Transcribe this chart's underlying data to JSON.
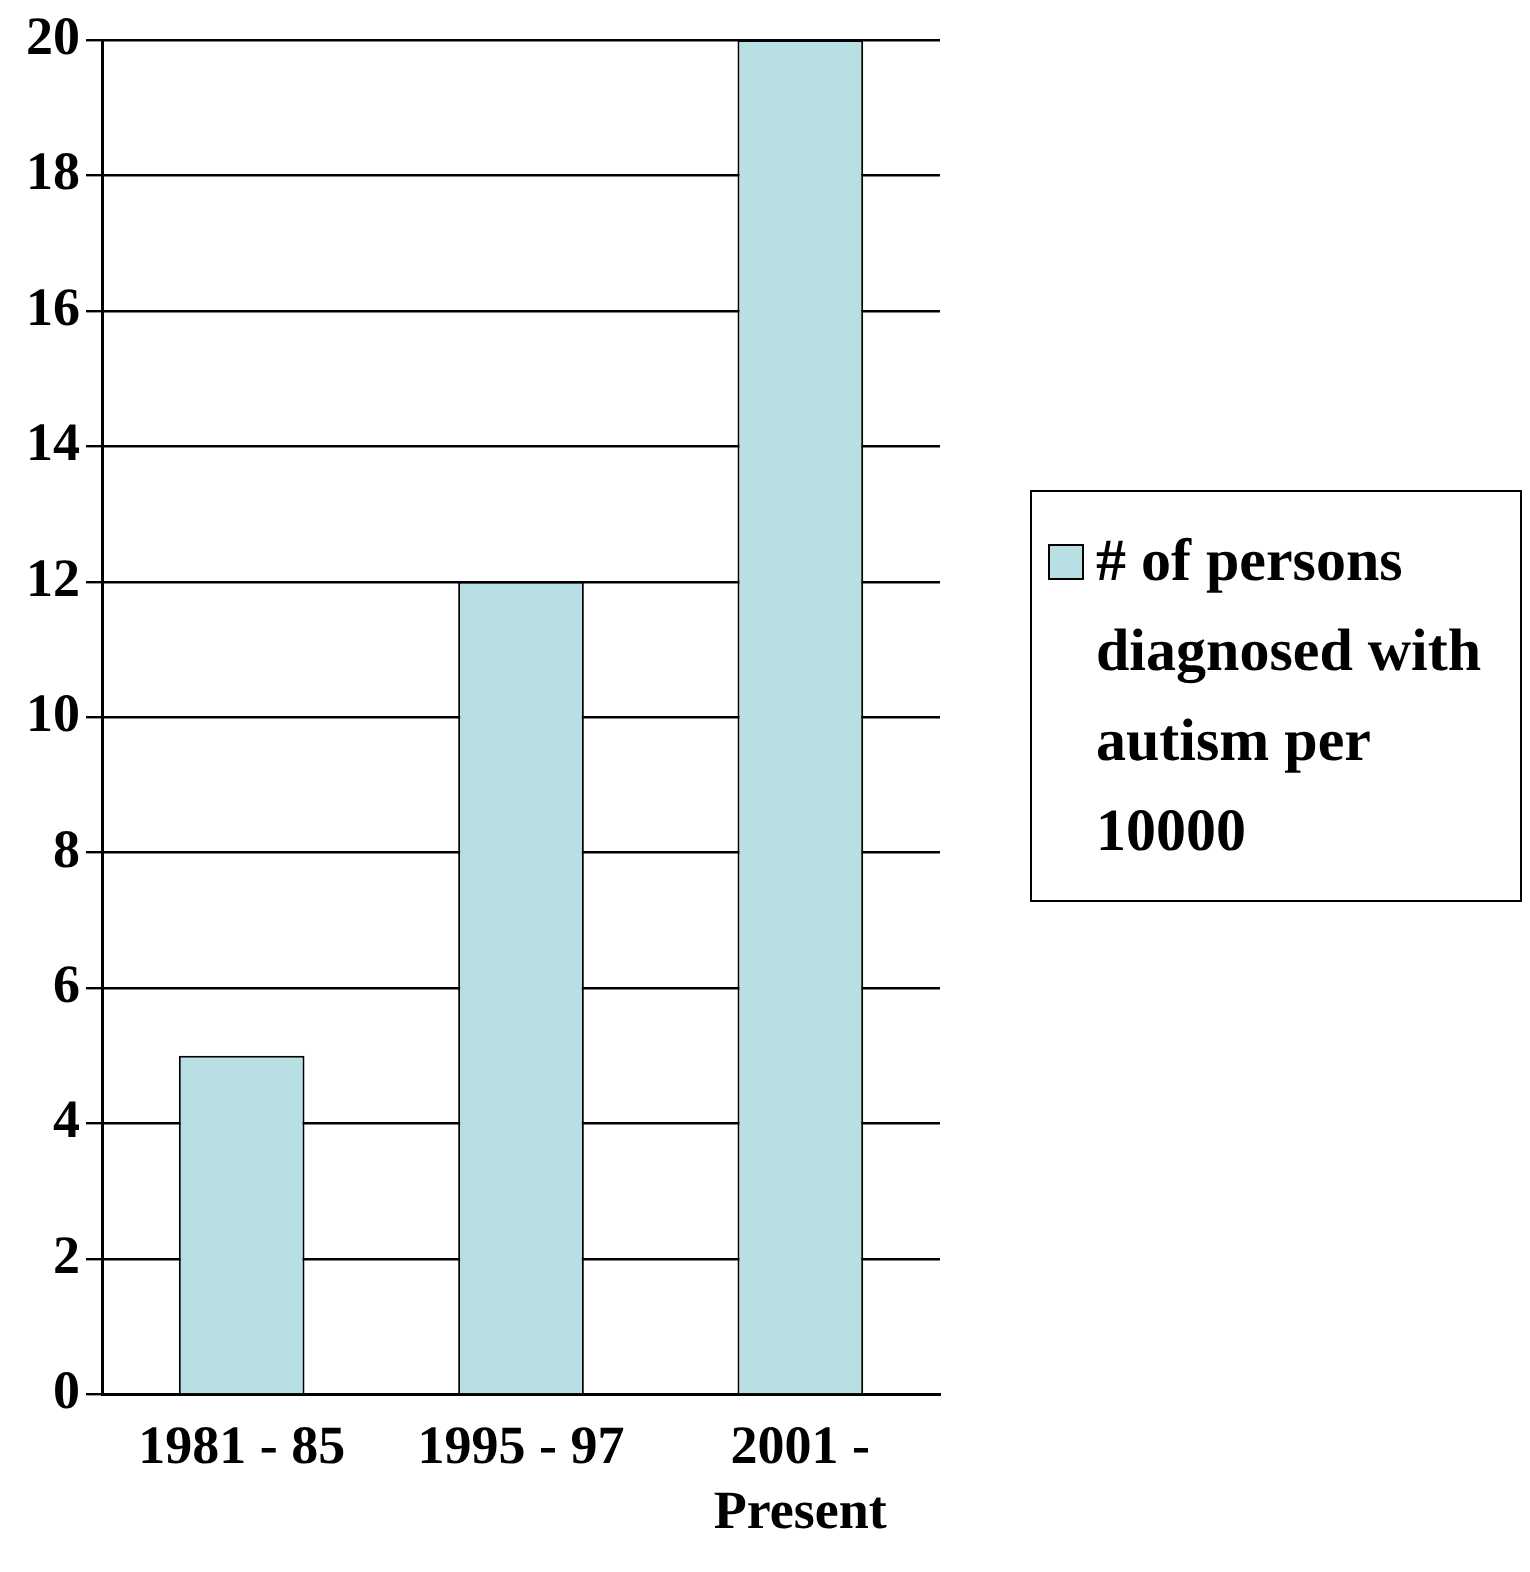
{
  "chart_data": {
    "type": "bar",
    "categories": [
      "1981 - 85",
      "1995 - 97",
      "2001 - Present"
    ],
    "series": [
      {
        "name": "# of persons diagnosed with autism per 10000",
        "color": "#b8e0e4",
        "values": [
          5,
          12,
          20
        ]
      }
    ],
    "ylim": [
      0,
      20
    ],
    "yticks": [
      0,
      2,
      4,
      6,
      8,
      10,
      12,
      14,
      16,
      18,
      20
    ],
    "grid": "y",
    "legend": "right"
  }
}
